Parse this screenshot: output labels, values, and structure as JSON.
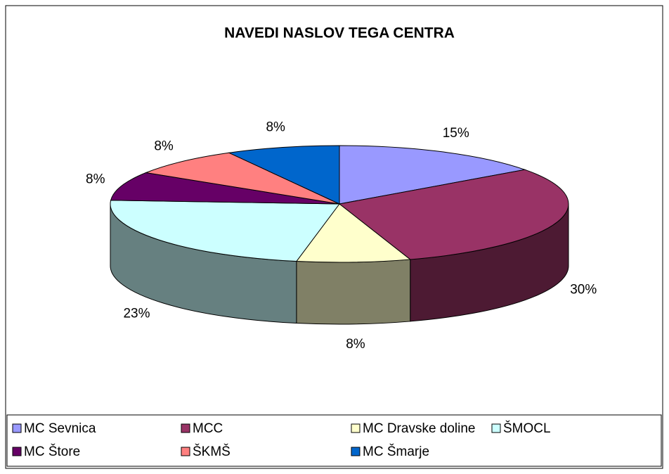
{
  "chart_data": {
    "type": "pie3d",
    "title": "NAVEDI NASLOV TEGA CENTRA",
    "categories": [
      "MC Sevnica",
      "MCC",
      "MC Dravske doline",
      "ŠMOCL",
      "MC Štore",
      "ŠKMŠ",
      "MC Šmarje"
    ],
    "values": [
      15,
      30,
      8,
      23,
      8,
      8,
      8
    ],
    "value_labels": [
      "15%",
      "30%",
      "8%",
      "23%",
      "8%",
      "8%",
      "8%"
    ],
    "colors": [
      "#9999ff",
      "#993366",
      "#ffffcc",
      "#ccffff",
      "#660066",
      "#ff8080",
      "#0066cc"
    ],
    "legend": "bottom"
  }
}
